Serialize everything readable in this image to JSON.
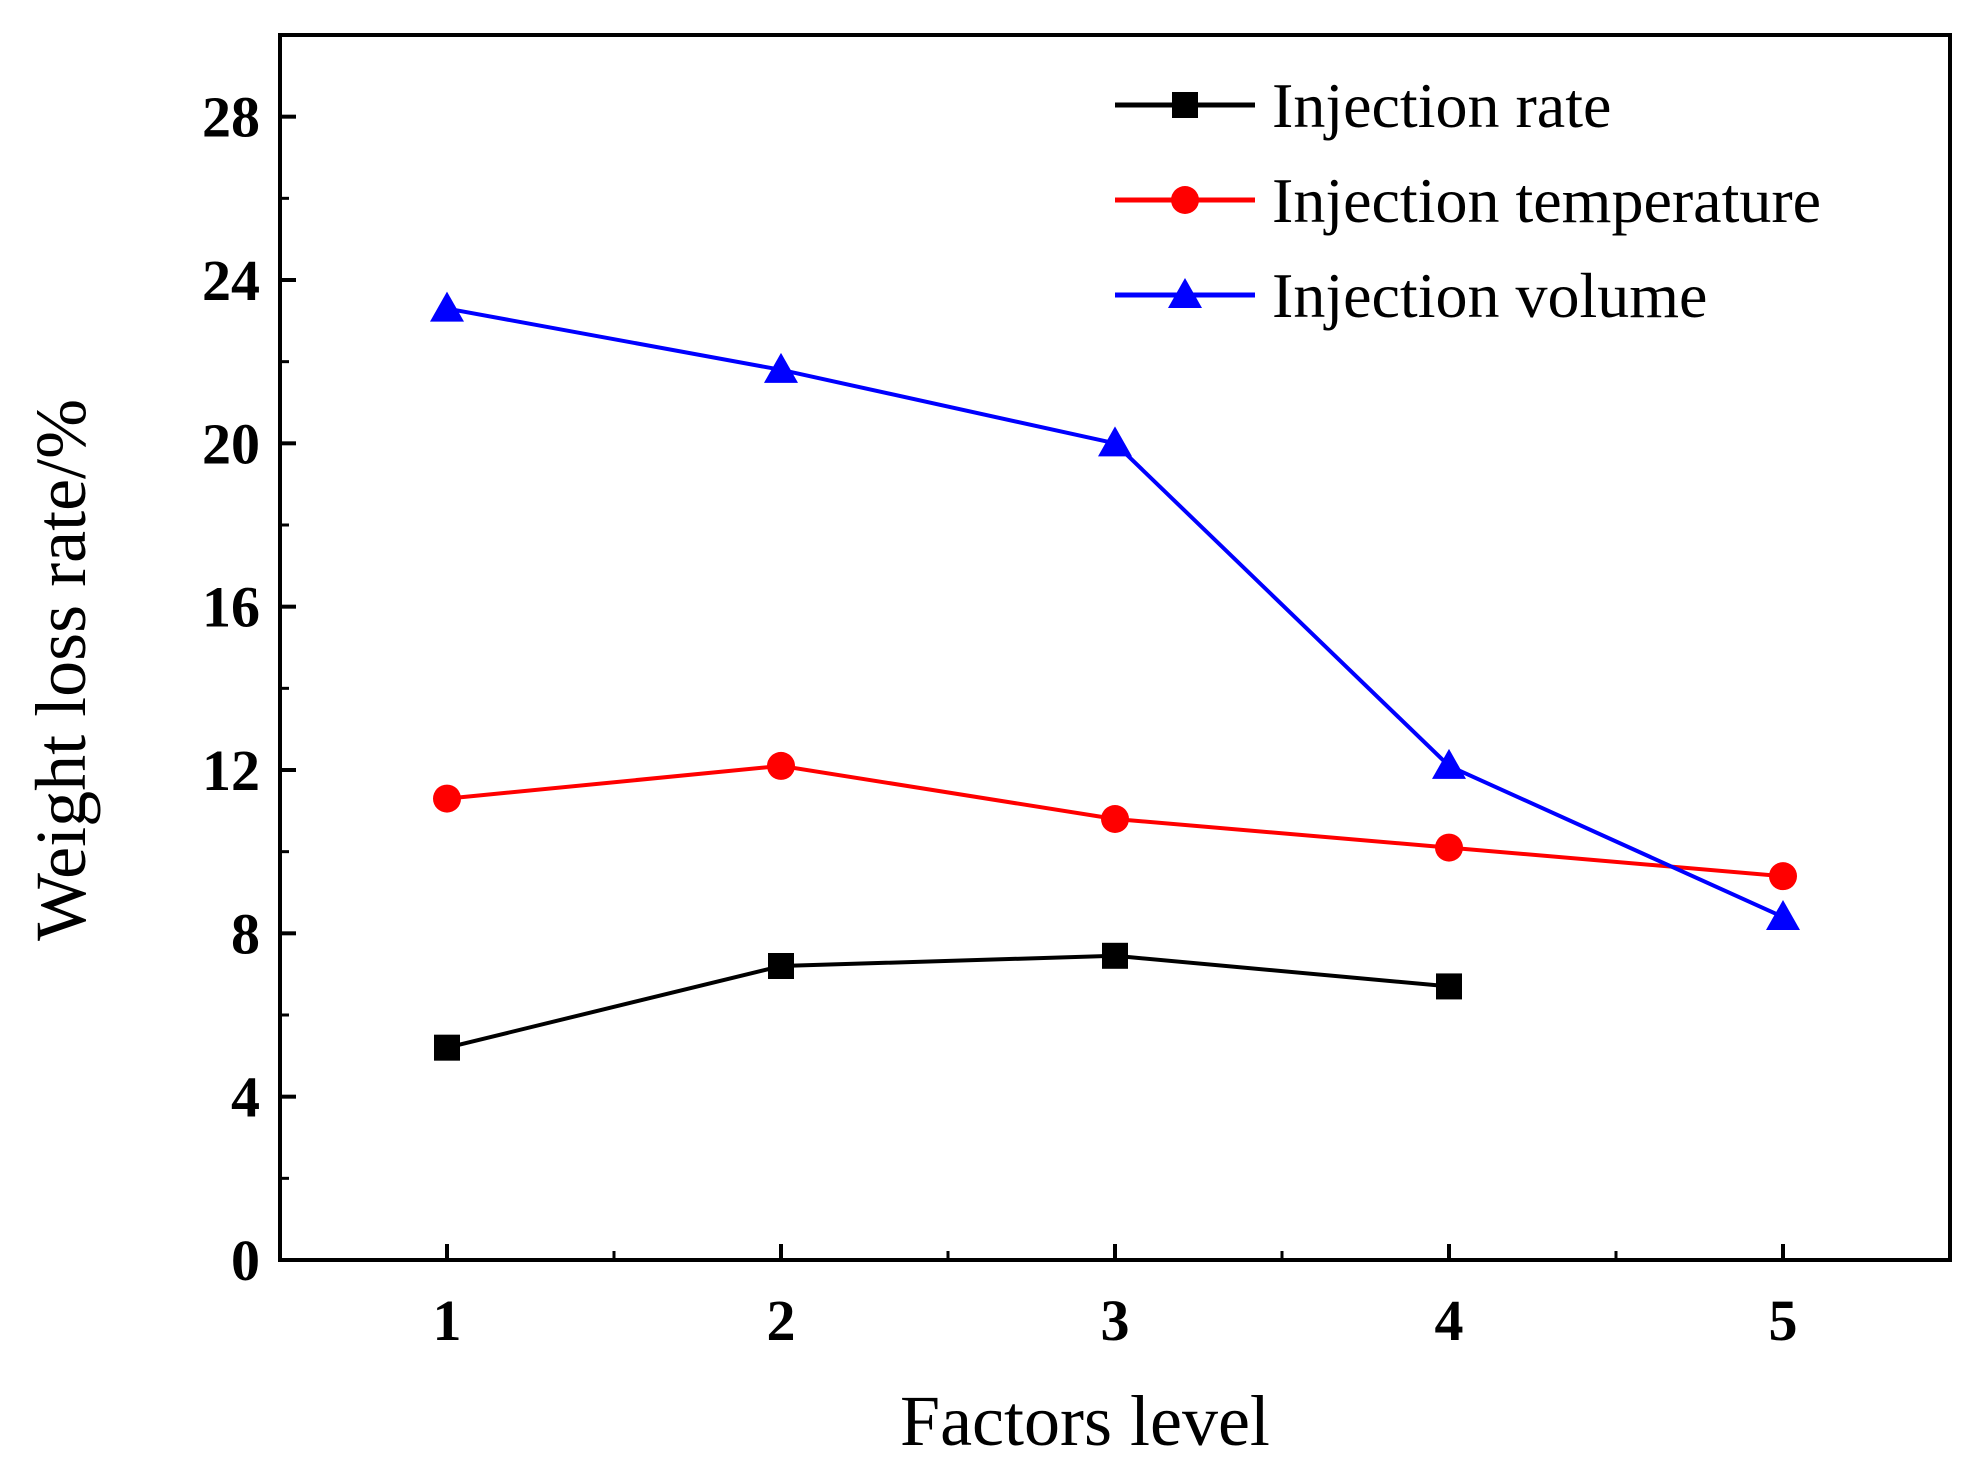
{
  "chart_data": {
    "type": "line",
    "title": "",
    "xlabel": "Factors level",
    "ylabel": "Weight loss rate/%",
    "xlim": [
      0.5,
      5.5
    ],
    "ylim": [
      0,
      30
    ],
    "xticks": [
      1,
      2,
      3,
      4,
      5
    ],
    "x_tick_labels": [
      "1",
      "2",
      "3",
      "4",
      "5"
    ],
    "yticks": [
      0,
      4,
      8,
      12,
      16,
      20,
      24,
      28
    ],
    "y_tick_labels": [
      "0",
      "4",
      "8",
      "12",
      "16",
      "20",
      "24",
      "28"
    ],
    "grid": false,
    "legend_position": "top-right",
    "series": [
      {
        "name": "Injection rate",
        "color": "#000000",
        "marker": "square",
        "x": [
          1,
          2,
          3,
          4
        ],
        "values": [
          5.2,
          7.2,
          7.45,
          6.7
        ]
      },
      {
        "name": "Injection temperature",
        "color": "#ff0000",
        "marker": "circle",
        "x": [
          1,
          2,
          3,
          4,
          5
        ],
        "values": [
          11.3,
          12.1,
          10.8,
          10.1,
          9.4
        ]
      },
      {
        "name": "Injection volume",
        "color": "#0000ff",
        "marker": "triangle",
        "x": [
          1,
          2,
          3,
          4,
          5
        ],
        "values": [
          23.3,
          21.8,
          20.0,
          12.1,
          8.4
        ]
      }
    ]
  }
}
